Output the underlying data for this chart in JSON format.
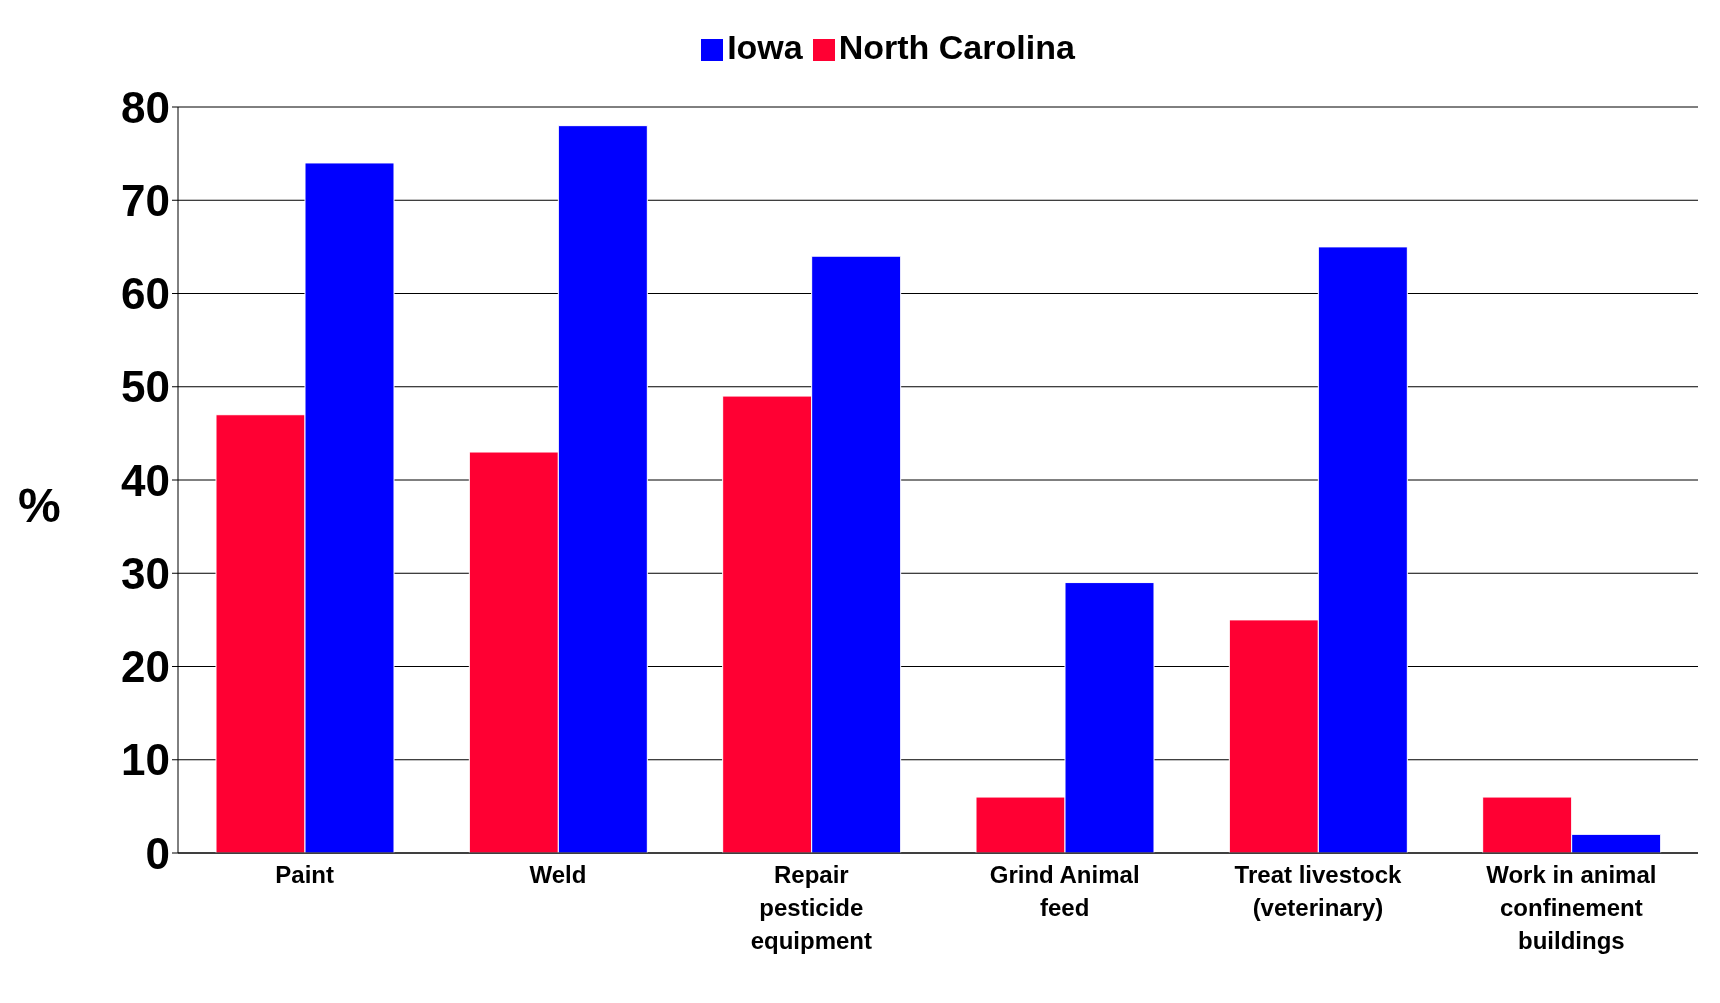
{
  "chart_data": {
    "type": "bar",
    "ylabel": "%",
    "categories": [
      "Paint",
      "Weld",
      "Repair pesticide equipment",
      "Grind Animal feed",
      "Treat livestock (veterinary)",
      "Work in animal confinement buildings"
    ],
    "series": [
      {
        "name": "North Carolina",
        "color": "#ff0033",
        "values": [
          47,
          43,
          49,
          6,
          25,
          6
        ]
      },
      {
        "name": "Iowa",
        "color": "#0000ff",
        "values": [
          74,
          78,
          64,
          29,
          65,
          2
        ]
      }
    ],
    "ylim": [
      0,
      80
    ],
    "yticks": [
      0,
      10,
      20,
      30,
      40,
      50,
      60,
      70,
      80
    ],
    "grid": "y",
    "legend": "top"
  }
}
